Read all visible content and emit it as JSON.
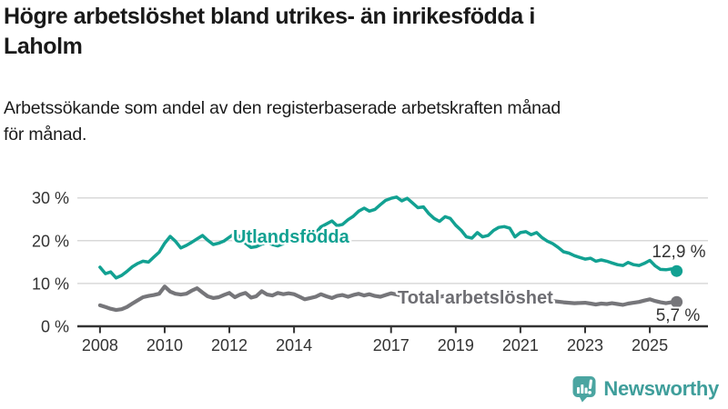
{
  "header": {
    "title_line1": "Högre arbetslöshet bland utrikes- än inrikesfödda i",
    "title_line2": "Laholm",
    "subtitle_line1": "Arbetssökande som andel av den registerbaserade arbetskraften månad",
    "subtitle_line2": "för månad."
  },
  "footer": {
    "brand": "Newsworthy"
  },
  "colors": {
    "accent_teal": "#12a192",
    "series_gray": "#76767a",
    "grid": "#d9d9d9",
    "axis_text": "#333333",
    "logo_teal": "#4ba5a1",
    "brand_text": "#3f9e9b",
    "title_text": "#191919"
  },
  "chart_data": {
    "type": "line",
    "title": "Högre arbetslöshet bland utrikes- än inrikesfödda i Laholm",
    "xlabel": "",
    "ylabel": "",
    "xlim": [
      2007.3,
      2026.8
    ],
    "ylim": [
      0,
      32.7
    ],
    "grid": "horizontal",
    "legend_position": "inline-labels",
    "yticks": [
      0,
      10,
      20,
      30
    ],
    "ytick_labels": [
      "0 %",
      "10 %",
      "20 %",
      "30 %"
    ],
    "xticks": [
      2008,
      2010,
      2012,
      2014,
      2017,
      2019,
      2021,
      2023,
      2025
    ],
    "xtick_labels": [
      "2008",
      "2010",
      "2012",
      "2014",
      "2017",
      "2019",
      "2021",
      "2023",
      "2025"
    ],
    "series": [
      {
        "name": "Utlandsfödda",
        "color": "#12a192",
        "end_value": 12.9,
        "end_label": "12,9 %",
        "points": [
          [
            2008.0,
            13.8
          ],
          [
            2008.17,
            12.3
          ],
          [
            2008.33,
            12.7
          ],
          [
            2008.5,
            11.3
          ],
          [
            2008.67,
            11.9
          ],
          [
            2008.83,
            12.8
          ],
          [
            2009.0,
            13.9
          ],
          [
            2009.17,
            14.7
          ],
          [
            2009.33,
            15.2
          ],
          [
            2009.5,
            15.0
          ],
          [
            2009.67,
            16.2
          ],
          [
            2009.83,
            17.3
          ],
          [
            2010.0,
            19.4
          ],
          [
            2010.17,
            21.0
          ],
          [
            2010.33,
            19.9
          ],
          [
            2010.5,
            18.3
          ],
          [
            2010.67,
            18.9
          ],
          [
            2010.83,
            19.6
          ],
          [
            2011.0,
            20.4
          ],
          [
            2011.17,
            21.2
          ],
          [
            2011.33,
            20.1
          ],
          [
            2011.5,
            19.1
          ],
          [
            2011.67,
            19.4
          ],
          [
            2011.83,
            19.9
          ],
          [
            2012.0,
            20.8
          ],
          [
            2012.17,
            21.7
          ],
          [
            2012.33,
            20.9
          ],
          [
            2012.5,
            19.4
          ],
          [
            2012.67,
            18.4
          ],
          [
            2012.83,
            18.6
          ],
          [
            2013.0,
            19.2
          ],
          [
            2013.17,
            19.6
          ],
          [
            2013.33,
            19.1
          ],
          [
            2013.5,
            18.8
          ],
          [
            2013.67,
            19.3
          ],
          [
            2013.83,
            19.9
          ],
          [
            2014.0,
            20.6
          ],
          [
            2014.17,
            20.9
          ],
          [
            2014.33,
            20.4
          ],
          [
            2014.5,
            20.9
          ],
          [
            2014.67,
            21.8
          ],
          [
            2014.83,
            23.2
          ],
          [
            2015.0,
            23.9
          ],
          [
            2015.17,
            24.6
          ],
          [
            2015.33,
            23.5
          ],
          [
            2015.5,
            23.8
          ],
          [
            2015.67,
            24.9
          ],
          [
            2015.83,
            25.7
          ],
          [
            2016.0,
            26.9
          ],
          [
            2016.17,
            27.6
          ],
          [
            2016.33,
            26.9
          ],
          [
            2016.5,
            27.3
          ],
          [
            2016.67,
            28.4
          ],
          [
            2016.83,
            29.4
          ],
          [
            2017.0,
            29.9
          ],
          [
            2017.17,
            30.2
          ],
          [
            2017.33,
            29.3
          ],
          [
            2017.5,
            29.9
          ],
          [
            2017.67,
            28.8
          ],
          [
            2017.83,
            27.7
          ],
          [
            2018.0,
            27.9
          ],
          [
            2018.17,
            26.3
          ],
          [
            2018.33,
            25.2
          ],
          [
            2018.5,
            24.5
          ],
          [
            2018.67,
            25.6
          ],
          [
            2018.83,
            25.2
          ],
          [
            2019.0,
            23.6
          ],
          [
            2019.17,
            22.4
          ],
          [
            2019.33,
            20.9
          ],
          [
            2019.5,
            20.6
          ],
          [
            2019.67,
            21.9
          ],
          [
            2019.83,
            20.9
          ],
          [
            2020.0,
            21.2
          ],
          [
            2020.17,
            22.4
          ],
          [
            2020.33,
            23.1
          ],
          [
            2020.5,
            23.3
          ],
          [
            2020.67,
            22.9
          ],
          [
            2020.83,
            20.9
          ],
          [
            2021.0,
            21.9
          ],
          [
            2021.17,
            22.1
          ],
          [
            2021.33,
            21.4
          ],
          [
            2021.5,
            21.9
          ],
          [
            2021.67,
            20.7
          ],
          [
            2021.83,
            19.9
          ],
          [
            2022.0,
            19.3
          ],
          [
            2022.17,
            18.4
          ],
          [
            2022.33,
            17.4
          ],
          [
            2022.5,
            17.1
          ],
          [
            2022.67,
            16.5
          ],
          [
            2022.83,
            16.1
          ],
          [
            2023.0,
            15.7
          ],
          [
            2023.17,
            15.9
          ],
          [
            2023.33,
            15.2
          ],
          [
            2023.5,
            15.5
          ],
          [
            2023.67,
            15.2
          ],
          [
            2023.83,
            14.8
          ],
          [
            2024.0,
            14.4
          ],
          [
            2024.17,
            14.2
          ],
          [
            2024.33,
            14.9
          ],
          [
            2024.5,
            14.4
          ],
          [
            2024.67,
            14.2
          ],
          [
            2024.83,
            14.7
          ],
          [
            2025.0,
            15.4
          ],
          [
            2025.17,
            14.1
          ],
          [
            2025.33,
            13.3
          ],
          [
            2025.5,
            13.2
          ],
          [
            2025.67,
            13.4
          ],
          [
            2025.83,
            12.9
          ]
        ]
      },
      {
        "name": "Total arbetslöshet",
        "color": "#76767a",
        "end_value": 5.7,
        "end_label": "5,7 %",
        "points": [
          [
            2008.0,
            4.9
          ],
          [
            2008.17,
            4.5
          ],
          [
            2008.33,
            4.1
          ],
          [
            2008.5,
            3.8
          ],
          [
            2008.67,
            4.0
          ],
          [
            2008.83,
            4.5
          ],
          [
            2009.0,
            5.3
          ],
          [
            2009.17,
            6.1
          ],
          [
            2009.33,
            6.8
          ],
          [
            2009.5,
            7.1
          ],
          [
            2009.67,
            7.3
          ],
          [
            2009.83,
            7.6
          ],
          [
            2010.0,
            9.3
          ],
          [
            2010.17,
            8.1
          ],
          [
            2010.33,
            7.6
          ],
          [
            2010.5,
            7.4
          ],
          [
            2010.67,
            7.6
          ],
          [
            2010.83,
            8.3
          ],
          [
            2011.0,
            8.9
          ],
          [
            2011.17,
            7.9
          ],
          [
            2011.33,
            7.0
          ],
          [
            2011.5,
            6.6
          ],
          [
            2011.67,
            6.8
          ],
          [
            2011.83,
            7.3
          ],
          [
            2012.0,
            7.8
          ],
          [
            2012.17,
            6.8
          ],
          [
            2012.33,
            7.4
          ],
          [
            2012.5,
            7.8
          ],
          [
            2012.67,
            6.7
          ],
          [
            2012.83,
            7.0
          ],
          [
            2013.0,
            8.2
          ],
          [
            2013.17,
            7.4
          ],
          [
            2013.33,
            7.2
          ],
          [
            2013.5,
            7.8
          ],
          [
            2013.67,
            7.5
          ],
          [
            2013.83,
            7.7
          ],
          [
            2014.0,
            7.5
          ],
          [
            2014.17,
            6.9
          ],
          [
            2014.33,
            6.3
          ],
          [
            2014.5,
            6.6
          ],
          [
            2014.67,
            6.9
          ],
          [
            2014.83,
            7.5
          ],
          [
            2015.0,
            7.0
          ],
          [
            2015.17,
            6.6
          ],
          [
            2015.33,
            7.1
          ],
          [
            2015.5,
            7.3
          ],
          [
            2015.67,
            6.9
          ],
          [
            2015.83,
            7.3
          ],
          [
            2016.0,
            7.6
          ],
          [
            2016.17,
            7.2
          ],
          [
            2016.33,
            7.5
          ],
          [
            2016.5,
            7.1
          ],
          [
            2016.67,
            6.9
          ],
          [
            2016.83,
            7.3
          ],
          [
            2017.0,
            7.7
          ],
          [
            2017.17,
            7.4
          ],
          [
            2017.33,
            7.2
          ],
          [
            2017.5,
            7.0
          ],
          [
            2017.67,
            7.2
          ],
          [
            2017.83,
            7.4
          ],
          [
            2018.0,
            7.2
          ],
          [
            2018.17,
            6.9
          ],
          [
            2018.33,
            6.7
          ],
          [
            2018.5,
            6.9
          ],
          [
            2018.67,
            7.1
          ],
          [
            2018.83,
            6.9
          ],
          [
            2019.0,
            6.7
          ],
          [
            2019.33,
            6.4
          ],
          [
            2019.67,
            6.6
          ],
          [
            2020.0,
            6.9
          ],
          [
            2020.33,
            7.2
          ],
          [
            2020.67,
            7.0
          ],
          [
            2021.0,
            6.8
          ],
          [
            2021.33,
            6.4
          ],
          [
            2021.67,
            6.1
          ],
          [
            2022.0,
            5.9
          ],
          [
            2022.33,
            5.6
          ],
          [
            2022.67,
            5.4
          ],
          [
            2023.0,
            5.5
          ],
          [
            2023.17,
            5.3
          ],
          [
            2023.33,
            5.1
          ],
          [
            2023.5,
            5.3
          ],
          [
            2023.67,
            5.2
          ],
          [
            2023.83,
            5.4
          ],
          [
            2024.0,
            5.2
          ],
          [
            2024.17,
            5.0
          ],
          [
            2024.33,
            5.3
          ],
          [
            2024.5,
            5.5
          ],
          [
            2024.67,
            5.7
          ],
          [
            2024.83,
            6.0
          ],
          [
            2025.0,
            6.3
          ],
          [
            2025.17,
            5.9
          ],
          [
            2025.33,
            5.6
          ],
          [
            2025.5,
            5.4
          ],
          [
            2025.67,
            5.6
          ],
          [
            2025.83,
            5.7
          ]
        ]
      }
    ]
  }
}
